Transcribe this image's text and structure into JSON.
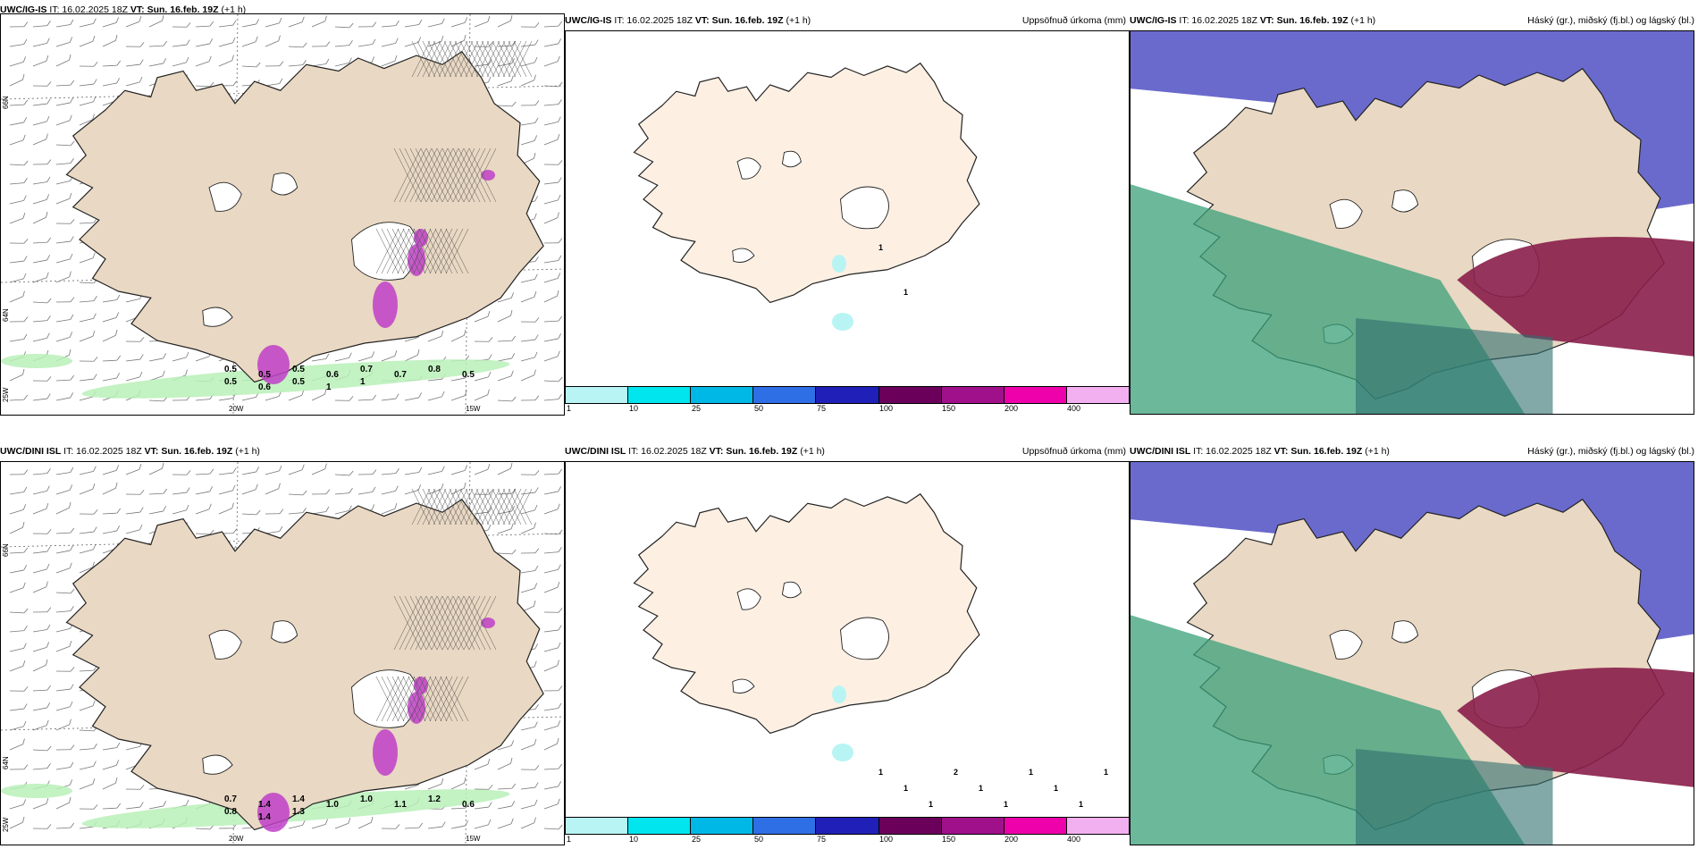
{
  "rows": [
    {
      "left_header": {
        "model": "UWC/IG-IS",
        "it_label": "IT: 16.02.2025 18Z",
        "vt_label": "VT: Sun. 16.feb. 19Z",
        "lead": "(+1 h)"
      },
      "mid_header": {
        "model": "UWC/IG-IS",
        "it_label": "IT: 16.02.2025 18Z",
        "vt_label": "VT: Sun. 16.feb. 19Z",
        "lead": "(+1 h)",
        "right_title": "Uppsöfnuð úrkoma (mm)"
      },
      "right_header": {
        "model": "UWC/IG-IS",
        "it_label": "IT: 16.02.2025 18Z",
        "vt_label": "VT: Sun. 16.feb. 19Z",
        "lead": "(+1 h)",
        "right_title": "Háský (gr.), miðský (fj.bl.) og lágský (bl.)"
      },
      "precip_values": [
        "0.5",
        "0.5",
        "0.5",
        "0.6",
        "0.7",
        "0.7",
        "0.8",
        "0.5",
        "0.5",
        "0.6",
        "0.5",
        "1",
        "1"
      ],
      "accum_values": [
        "1",
        "1"
      ]
    },
    {
      "left_header": {
        "model": "UWC/DINI ISL",
        "it_label": "IT: 16.02.2025 18Z",
        "vt_label": "VT: Sun. 16.feb. 19Z",
        "lead": "(+1 h)"
      },
      "mid_header": {
        "model": "UWC/DINI ISL",
        "it_label": "IT: 16.02.2025 18Z",
        "vt_label": "VT: Sun. 16.feb. 19Z",
        "lead": "(+1 h)",
        "right_title": "Uppsöfnuð úrkoma (mm)"
      },
      "right_header": {
        "model": "UWC/DINI ISL",
        "it_label": "IT: 16.02.2025 18Z",
        "vt_label": "VT: Sun. 16.feb. 19Z",
        "lead": "(+1 h)",
        "right_title": "Háský (gr.), miðský (fj.bl.) og lágský (bl.)"
      },
      "precip_values": [
        "0.7",
        "1.4",
        "1.4",
        "1.0",
        "1.0",
        "1.1",
        "1.2",
        "0.6",
        "0.8",
        "1.4",
        "1.3"
      ],
      "accum_values": [
        "1",
        "1",
        "1",
        "2",
        "1",
        "1",
        "1",
        "1",
        "1",
        "1"
      ]
    }
  ],
  "axis_labels": {
    "lat_66": "66N",
    "lat_64": "64N",
    "lon_25": "25W",
    "lon_20": "20W",
    "lon_15": "15W"
  },
  "colorbar": {
    "ticks": [
      "1",
      "10",
      "25",
      "50",
      "75",
      "100",
      "150",
      "200",
      "400"
    ],
    "colors": [
      "#b8f4f4",
      "#00e5ee",
      "#00b8e6",
      "#2f6fe6",
      "#2020b8",
      "#6a005a",
      "#a0108a",
      "#ee00aa",
      "#f2b0f0"
    ]
  },
  "colors": {
    "land": "#e9d8c3",
    "land_light": "#fdf0e3",
    "sea_cloud_blue": "#5a5ac8",
    "cloud_green": "#3aa07a",
    "cloud_red": "#8a1e4a",
    "precip_green": "#b8f0b8",
    "precip_magenta": "#c040c8"
  }
}
